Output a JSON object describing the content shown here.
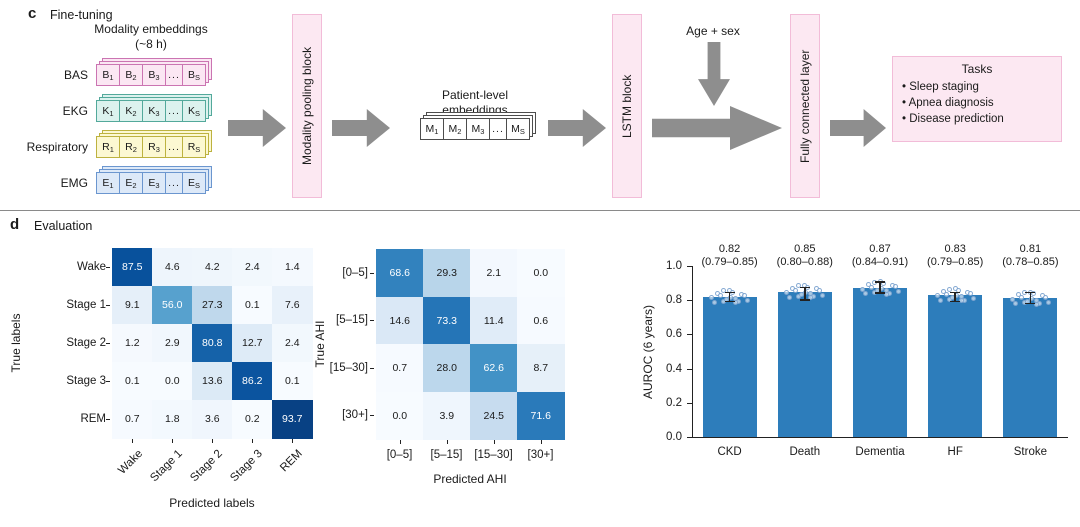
{
  "panel_c": {
    "panel_label": "c",
    "section_title": "Fine-tuning",
    "modality_group": {
      "title_line1": "Modality embeddings",
      "title_line2": "(~8 h)",
      "rows": [
        {
          "label": "BAS",
          "tokens": [
            "B_1",
            "B_2",
            "B_3",
            "...",
            "B_S"
          ],
          "fill": "#fbe7f3",
          "border": "#cb74b2"
        },
        {
          "label": "EKG",
          "tokens": [
            "K_1",
            "K_2",
            "K_3",
            "...",
            "K_S"
          ],
          "fill": "#dcf2ee",
          "border": "#53a99b"
        },
        {
          "label": "Respiratory",
          "tokens": [
            "R_1",
            "R_2",
            "R_3",
            "...",
            "R_S"
          ],
          "fill": "#fcf8d2",
          "border": "#bdb23f"
        },
        {
          "label": "EMG",
          "tokens": [
            "E_1",
            "E_2",
            "E_3",
            "...",
            "E_S"
          ],
          "fill": "#dde9f8",
          "border": "#6b96cf"
        }
      ]
    },
    "pooling_block": "Modality pooling block",
    "patient_embeddings": {
      "title_line1": "Patient-level",
      "title_line2": "embeddings",
      "tokens": [
        "M_1",
        "M_2",
        "M_3",
        "...",
        "M_S"
      ],
      "fill": "#ffffff",
      "border": "#4d4d4d"
    },
    "lstm_block": "LSTM block",
    "age_sex_label": "Age + sex",
    "fc_block": "Fully connected layer",
    "tasks": {
      "title": "Tasks",
      "items": [
        "Sleep staging",
        "Apnea diagnosis",
        "Disease prediction"
      ]
    },
    "colors": {
      "block_fill": "#fce8f2",
      "block_border": "#f2bcd8",
      "arrow_gray": "#8e8e8e"
    }
  },
  "panel_d": {
    "panel_label": "d",
    "section_title": "Evaluation"
  },
  "chart_data": [
    {
      "type": "heatmap",
      "name": "sleep-staging-confusion-matrix",
      "xlabel": "Predicted labels",
      "ylabel": "True labels",
      "categories": [
        "Wake",
        "Stage 1",
        "Stage 2",
        "Stage 3",
        "REM"
      ],
      "values": [
        [
          87.5,
          4.6,
          4.2,
          2.4,
          1.4
        ],
        [
          9.1,
          56.0,
          27.3,
          0.1,
          7.6
        ],
        [
          1.2,
          2.9,
          80.8,
          12.7,
          2.4
        ],
        [
          0.1,
          0.0,
          13.6,
          86.2,
          0.1
        ],
        [
          0.7,
          1.8,
          3.6,
          0.2,
          93.7
        ]
      ],
      "vmin": 0,
      "vmax": 100,
      "colormap": "Blues"
    },
    {
      "type": "heatmap",
      "name": "ahi-confusion-matrix",
      "xlabel": "Predicted AHI",
      "ylabel": "True AHI",
      "categories": [
        "[0–5]",
        "[5–15]",
        "[15–30]",
        "[30+]"
      ],
      "values": [
        [
          68.6,
          29.3,
          2.1,
          0.0
        ],
        [
          14.6,
          73.3,
          11.4,
          0.6
        ],
        [
          0.7,
          28.0,
          62.6,
          8.7
        ],
        [
          0.0,
          3.9,
          24.5,
          71.6
        ]
      ],
      "vmin": 0,
      "vmax": 100,
      "colormap": "Blues"
    },
    {
      "type": "bar",
      "name": "auroc-bar-chart",
      "ylabel": "AUROC (6 years)",
      "categories": [
        "CKD",
        "Death",
        "Dementia",
        "HF",
        "Stroke"
      ],
      "values": [
        0.82,
        0.85,
        0.87,
        0.83,
        0.81
      ],
      "ci_low": [
        0.79,
        0.8,
        0.84,
        0.79,
        0.78
      ],
      "ci_high": [
        0.85,
        0.88,
        0.91,
        0.85,
        0.85
      ],
      "ylim": [
        0,
        1.0
      ],
      "yticks": [
        0.0,
        0.2,
        0.4,
        0.6,
        0.8,
        1.0
      ],
      "bar_color": "#2d7dbb",
      "grid": false,
      "legend": false
    }
  ]
}
